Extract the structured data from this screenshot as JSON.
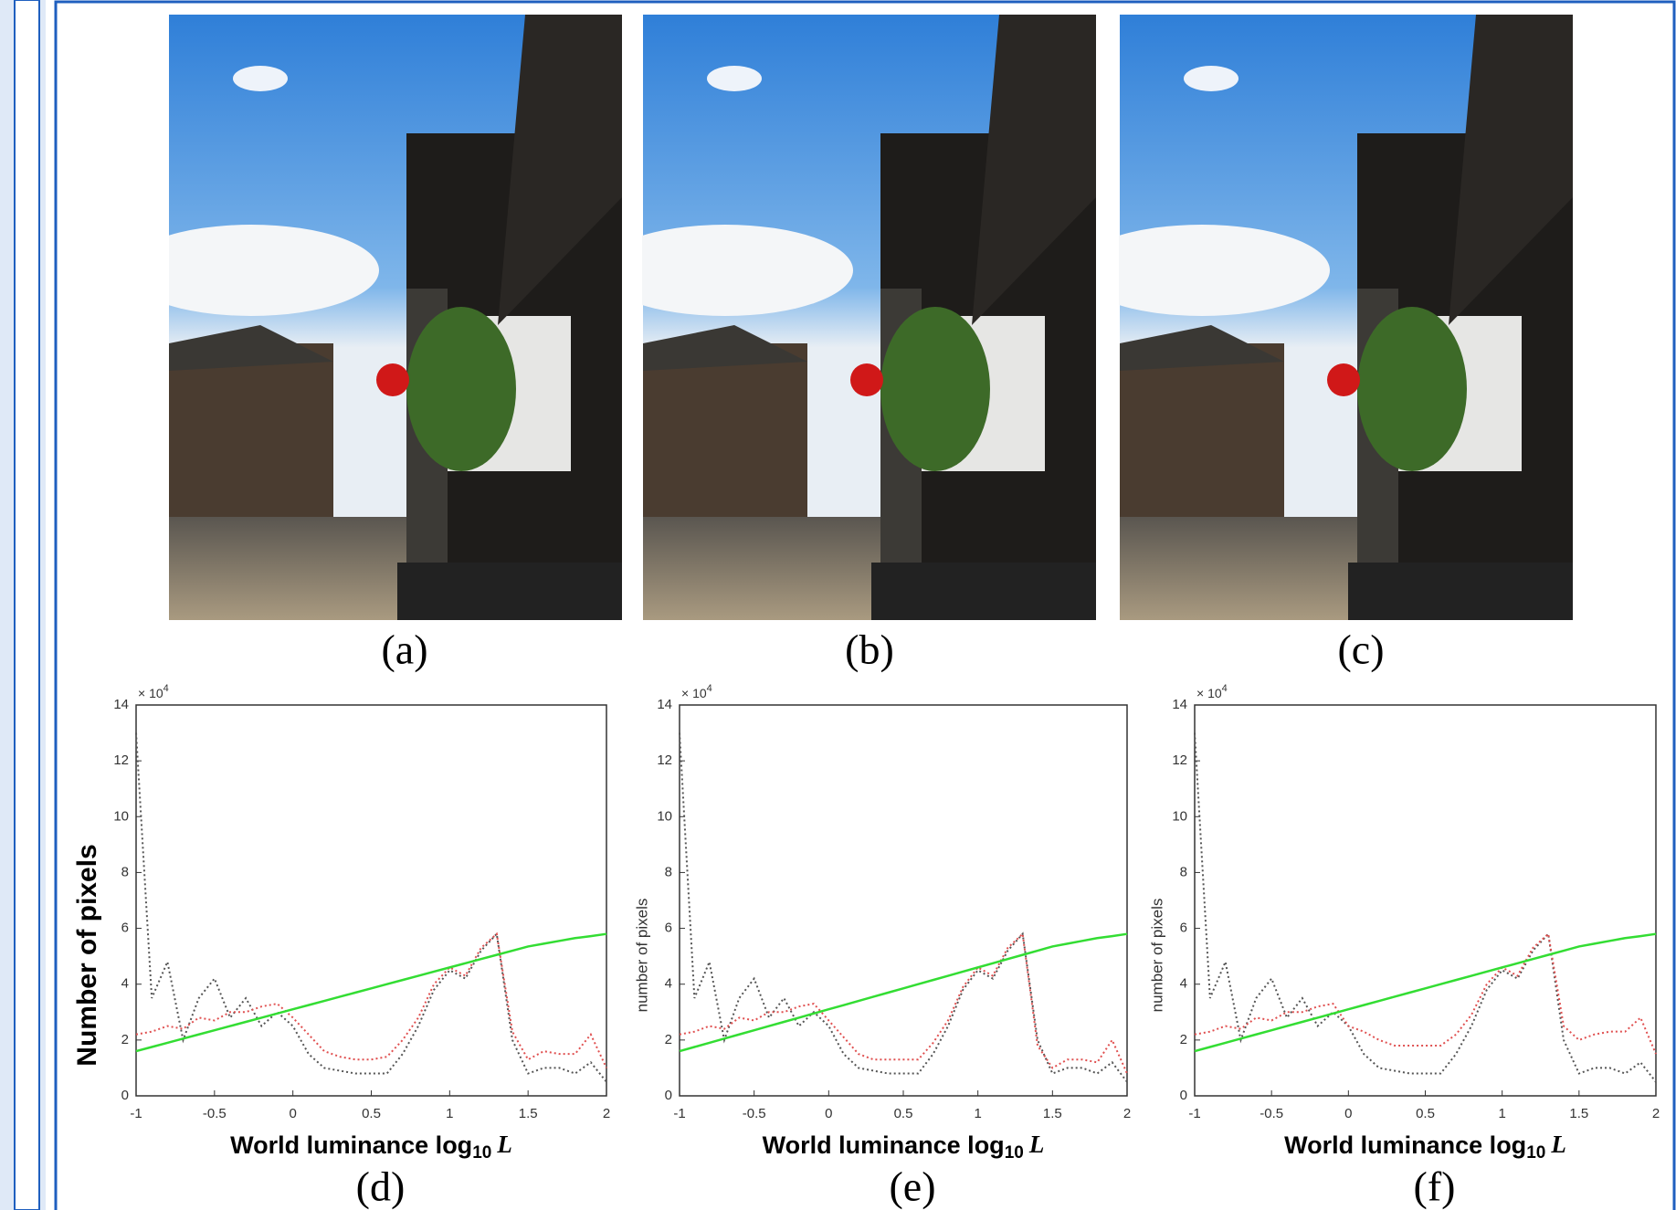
{
  "figure": {
    "captions": [
      "(a)",
      "(b)",
      "(c)"
    ]
  },
  "chart_data": [
    {
      "type": "line",
      "caption": "(d)",
      "y_label": "Number of pixels",
      "y_label_bold": true,
      "y_multiplier": {
        "base": "× 10",
        "exponent": "4"
      },
      "x_label": {
        "text": "World luminance log",
        "subscript": "10",
        "variable": "L"
      },
      "xlim": [
        -1,
        2
      ],
      "ylim": [
        0,
        14
      ],
      "xticks": [
        -1,
        -0.5,
        0,
        0.5,
        1,
        1.5,
        2
      ],
      "yticks": [
        0,
        2,
        4,
        6,
        8,
        10,
        12,
        14
      ],
      "x": [
        -1,
        -0.9,
        -0.8,
        -0.7,
        -0.6,
        -0.5,
        -0.4,
        -0.3,
        -0.2,
        -0.1,
        0,
        0.1,
        0.2,
        0.3,
        0.4,
        0.5,
        0.6,
        0.7,
        0.8,
        0.9,
        1,
        1.1,
        1.2,
        1.3,
        1.4,
        1.5,
        1.6,
        1.7,
        1.8,
        1.9,
        2
      ],
      "series": [
        {
          "color": "#555555",
          "style": "dotted",
          "values": [
            13,
            3.5,
            4.8,
            2,
            3.5,
            4.2,
            2.8,
            3.5,
            2.5,
            3,
            2.5,
            1.5,
            1,
            0.9,
            0.8,
            0.8,
            0.8,
            1.5,
            2.5,
            3.8,
            4.5,
            4.2,
            5.2,
            5.8,
            2,
            0.8,
            1,
            1,
            0.8,
            1.2,
            0.5
          ]
        },
        {
          "color": "#e05050",
          "style": "dotted",
          "values": [
            2.2,
            2.3,
            2.5,
            2.4,
            2.8,
            2.7,
            3,
            3,
            3.2,
            3.3,
            2.8,
            2.2,
            1.6,
            1.4,
            1.3,
            1.3,
            1.4,
            2,
            2.8,
            4,
            4.6,
            4.3,
            5.3,
            5.8,
            2.3,
            1.3,
            1.6,
            1.5,
            1.5,
            2.2,
            1
          ]
        },
        {
          "color": "#33dd33",
          "style": "solid",
          "values": [
            1.6,
            1.75,
            1.9,
            2.05,
            2.2,
            2.35,
            2.5,
            2.65,
            2.8,
            2.95,
            3.1,
            3.25,
            3.4,
            3.55,
            3.7,
            3.85,
            4,
            4.15,
            4.3,
            4.45,
            4.6,
            4.75,
            4.9,
            5.05,
            5.2,
            5.35,
            5.45,
            5.55,
            5.65,
            5.72,
            5.8
          ]
        }
      ]
    },
    {
      "type": "line",
      "caption": "(e)",
      "y_label": "number of pixels",
      "y_label_bold": false,
      "y_multiplier": {
        "base": "× 10",
        "exponent": "4"
      },
      "x_label": {
        "text": "World luminance log",
        "subscript": "10",
        "variable": "L"
      },
      "xlim": [
        -1,
        2
      ],
      "ylim": [
        0,
        14
      ],
      "xticks": [
        -1,
        -0.5,
        0,
        0.5,
        1,
        1.5,
        2
      ],
      "yticks": [
        0,
        2,
        4,
        6,
        8,
        10,
        12,
        14
      ],
      "x": [
        -1,
        -0.9,
        -0.8,
        -0.7,
        -0.6,
        -0.5,
        -0.4,
        -0.3,
        -0.2,
        -0.1,
        0,
        0.1,
        0.2,
        0.3,
        0.4,
        0.5,
        0.6,
        0.7,
        0.8,
        0.9,
        1,
        1.1,
        1.2,
        1.3,
        1.4,
        1.5,
        1.6,
        1.7,
        1.8,
        1.9,
        2
      ],
      "series": [
        {
          "color": "#555555",
          "style": "dotted",
          "values": [
            13,
            3.5,
            4.8,
            2,
            3.5,
            4.2,
            2.8,
            3.5,
            2.5,
            3,
            2.5,
            1.5,
            1,
            0.9,
            0.8,
            0.8,
            0.8,
            1.5,
            2.5,
            3.8,
            4.5,
            4.2,
            5.2,
            5.8,
            2,
            0.8,
            1,
            1,
            0.8,
            1.2,
            0.5
          ]
        },
        {
          "color": "#e05050",
          "style": "dotted",
          "values": [
            2.2,
            2.3,
            2.5,
            2.4,
            2.8,
            2.7,
            3,
            3,
            3.2,
            3.3,
            2.7,
            2.1,
            1.5,
            1.3,
            1.3,
            1.3,
            1.3,
            1.9,
            2.7,
            3.9,
            4.6,
            4.3,
            5.3,
            5.8,
            1.8,
            1,
            1.3,
            1.3,
            1.2,
            2,
            0.8
          ]
        },
        {
          "color": "#33dd33",
          "style": "solid",
          "values": [
            1.6,
            1.75,
            1.9,
            2.05,
            2.2,
            2.35,
            2.5,
            2.65,
            2.8,
            2.95,
            3.1,
            3.25,
            3.4,
            3.55,
            3.7,
            3.85,
            4,
            4.15,
            4.3,
            4.45,
            4.6,
            4.75,
            4.9,
            5.05,
            5.2,
            5.35,
            5.45,
            5.55,
            5.65,
            5.72,
            5.8
          ]
        }
      ]
    },
    {
      "type": "line",
      "caption": "(f)",
      "y_label": "number of pixels",
      "y_label_bold": false,
      "y_multiplier": {
        "base": "× 10",
        "exponent": "4"
      },
      "x_label": {
        "text": "World luminance log",
        "subscript": "10",
        "variable": "L"
      },
      "xlim": [
        -1,
        2
      ],
      "ylim": [
        0,
        14
      ],
      "xticks": [
        -1,
        -0.5,
        0,
        0.5,
        1,
        1.5,
        2
      ],
      "yticks": [
        0,
        2,
        4,
        6,
        8,
        10,
        12,
        14
      ],
      "x": [
        -1,
        -0.9,
        -0.8,
        -0.7,
        -0.6,
        -0.5,
        -0.4,
        -0.3,
        -0.2,
        -0.1,
        0,
        0.1,
        0.2,
        0.3,
        0.4,
        0.5,
        0.6,
        0.7,
        0.8,
        0.9,
        1,
        1.1,
        1.2,
        1.3,
        1.4,
        1.5,
        1.6,
        1.7,
        1.8,
        1.9,
        2
      ],
      "series": [
        {
          "color": "#555555",
          "style": "dotted",
          "values": [
            13,
            3.5,
            4.8,
            2,
            3.5,
            4.2,
            2.8,
            3.5,
            2.5,
            3,
            2.5,
            1.5,
            1,
            0.9,
            0.8,
            0.8,
            0.8,
            1.5,
            2.5,
            3.8,
            4.5,
            4.2,
            5.2,
            5.8,
            2,
            0.8,
            1,
            1,
            0.8,
            1.2,
            0.5
          ]
        },
        {
          "color": "#e05050",
          "style": "dotted",
          "values": [
            2.2,
            2.3,
            2.5,
            2.4,
            2.8,
            2.7,
            3,
            3,
            3.2,
            3.3,
            2.5,
            2.3,
            2,
            1.8,
            1.8,
            1.8,
            1.8,
            2.2,
            2.9,
            4,
            4.6,
            4.3,
            5.3,
            5.8,
            2.5,
            2,
            2.2,
            2.3,
            2.3,
            2.8,
            1.5
          ]
        },
        {
          "color": "#33dd33",
          "style": "solid",
          "values": [
            1.6,
            1.75,
            1.9,
            2.05,
            2.2,
            2.35,
            2.5,
            2.65,
            2.8,
            2.95,
            3.1,
            3.25,
            3.4,
            3.55,
            3.7,
            3.85,
            4,
            4.15,
            4.3,
            4.45,
            4.6,
            4.75,
            4.9,
            5.05,
            5.2,
            5.35,
            5.45,
            5.55,
            5.65,
            5.72,
            5.8
          ]
        }
      ]
    }
  ]
}
